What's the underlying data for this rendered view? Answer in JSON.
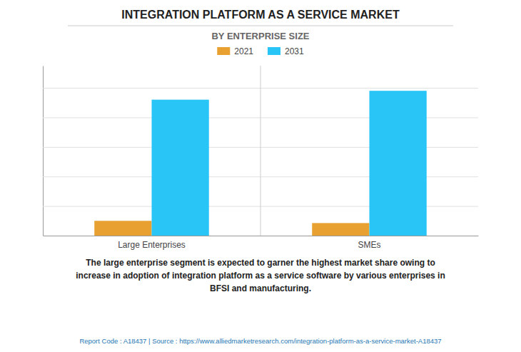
{
  "chart_data": {
    "type": "bar",
    "title": "INTEGRATION PLATFORM AS A SERVICE MARKET",
    "subtitle": "BY ENTERPRISE SIZE",
    "categories": [
      "Large Enterprises",
      "SMEs"
    ],
    "series": [
      {
        "name": "2021",
        "color": "#E8A030",
        "values": [
          1.0,
          0.85
        ]
      },
      {
        "name": "2031",
        "color": "#29C5F6",
        "values": [
          9.2,
          9.8
        ]
      }
    ],
    "ylim": [
      0,
      11.5
    ],
    "yticks": [
      0,
      2,
      4,
      6,
      8,
      10
    ],
    "grid": true,
    "tick_labels": "x",
    "legend": "top",
    "annotations": [
      "The large enterprise segment is expected to garner the highest market share owing to\nincrease in adoption of integration platform as a service software by various enterprises in\nBFSI and manufacturing.",
      "Report Code : A18437  |  Source : https://www.alliedmarketresearch.com/integration-platform-as-a-service-market-A18437"
    ]
  }
}
